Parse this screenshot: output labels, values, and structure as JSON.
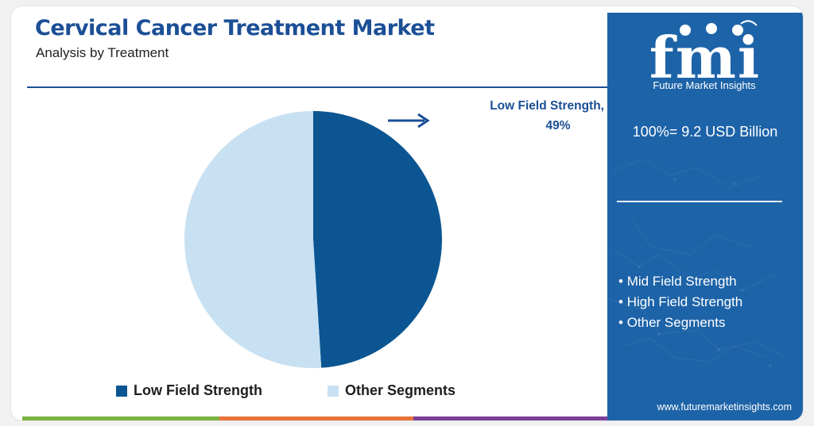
{
  "header": {
    "title": "Cervical Cancer Treatment Market",
    "subtitle": "Analysis by Treatment"
  },
  "chart_data": {
    "type": "pie",
    "title": "Cervical Cancer Treatment Market",
    "subtitle": "Analysis by Treatment",
    "categories": [
      "Low Field Strength",
      "Other Segments"
    ],
    "values": [
      49,
      51
    ],
    "unit": "%",
    "colors": [
      "#0b5692",
      "#c8e1f2"
    ],
    "annotation": {
      "label": "Low Field Strength,",
      "value": "49%"
    },
    "legend_placement": "bottom"
  },
  "legend": {
    "items": [
      {
        "label": "Low Field Strength",
        "color": "#0b5692"
      },
      {
        "label": "Other Segments",
        "color": "#c8e1f2"
      }
    ]
  },
  "sidebar": {
    "logo_text": "fmi",
    "brand": "Future Market Insights",
    "total": "100%= 9.2 USD Billion",
    "other_segments": [
      "Mid Field Strength",
      "High Field Strength",
      "Other Segments"
    ],
    "website": "www.futuremarketinsights.com"
  },
  "colors": {
    "title": "#1b4f96",
    "sidebar_bg": "#1d63a8",
    "bar": [
      "#7cb342",
      "#e8743b",
      "#7b3f98"
    ]
  }
}
